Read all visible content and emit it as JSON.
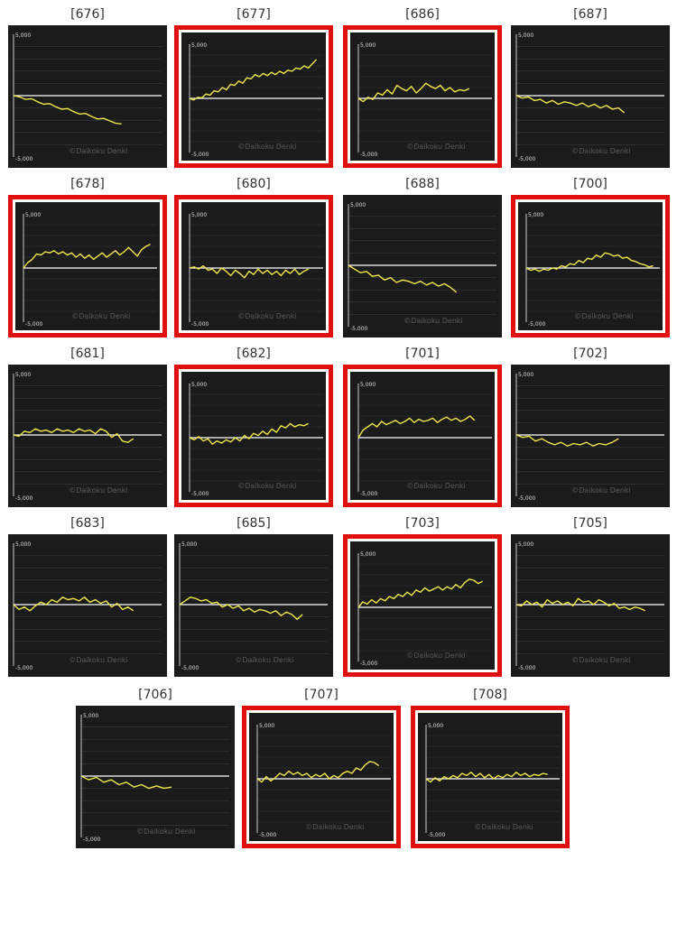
{
  "chart_data": [
    {
      "type": "line",
      "title": "[676]",
      "highlighted": false,
      "watermark": "©Daikoku Denki",
      "yticks": [
        "5,000",
        "-5,000"
      ],
      "ylim": [
        -5000,
        5000
      ],
      "values": [
        0,
        -100,
        -300,
        -250,
        -500,
        -700,
        -650,
        -900,
        -1100,
        -1050,
        -1300,
        -1500,
        -1450,
        -1700,
        -1900,
        -1850,
        -2050,
        -2250,
        -2300
      ]
    },
    {
      "type": "line",
      "title": "[677]",
      "highlighted": true,
      "watermark": "©Daikoku Denki",
      "yticks": [
        "5,000",
        "-5,000"
      ],
      "ylim": [
        -5000,
        5000
      ],
      "values": [
        0,
        -150,
        100,
        50,
        400,
        300,
        700,
        600,
        1000,
        800,
        1300,
        1200,
        1600,
        1400,
        1900,
        1800,
        2200,
        2000,
        2300,
        2100,
        2400,
        2200,
        2500,
        2300,
        2600,
        2500,
        2800,
        2700,
        3000,
        2800,
        3200,
        3600
      ]
    },
    {
      "type": "line",
      "title": "[686]",
      "highlighted": true,
      "watermark": "©Daikoku Denki",
      "yticks": [
        "5,000",
        "-5,000"
      ],
      "ylim": [
        -5000,
        5000
      ],
      "values": [
        0,
        -300,
        100,
        -100,
        500,
        300,
        800,
        400,
        1200,
        900,
        700,
        1100,
        500,
        900,
        1400,
        1100,
        900,
        1200,
        700,
        1000,
        600,
        800,
        700,
        900
      ]
    },
    {
      "type": "line",
      "title": "[687]",
      "highlighted": false,
      "watermark": "©Daikoku Denki",
      "yticks": [
        "5,000",
        "-5,000"
      ],
      "ylim": [
        -5000,
        5000
      ],
      "values": [
        0,
        -200,
        -100,
        -400,
        -300,
        -600,
        -400,
        -700,
        -500,
        -600,
        -800,
        -600,
        -900,
        -700,
        -1000,
        -800,
        -1100,
        -1000,
        -1400
      ]
    },
    {
      "type": "line",
      "title": "[678]",
      "highlighted": true,
      "watermark": "©Daikoku Denki",
      "yticks": [
        "5,000",
        "-5,000"
      ],
      "ylim": [
        -5000,
        5000
      ],
      "values": [
        0,
        500,
        800,
        1300,
        1200,
        1500,
        1400,
        1600,
        1300,
        1500,
        1200,
        1400,
        1000,
        1300,
        900,
        1200,
        800,
        1100,
        1400,
        1000,
        1300,
        1600,
        1200,
        1500,
        1900,
        1500,
        1100,
        1700,
        2000,
        2200
      ]
    },
    {
      "type": "line",
      "title": "[680]",
      "highlighted": true,
      "watermark": "©Daikoku Denki",
      "yticks": [
        "5,000",
        "-5,000"
      ],
      "ylim": [
        -5000,
        5000
      ],
      "values": [
        0,
        100,
        -100,
        200,
        -200,
        -100,
        -500,
        0,
        -300,
        -700,
        -200,
        -500,
        -900,
        -300,
        -600,
        -100,
        -500,
        -200,
        -600,
        -300,
        -700,
        -200,
        -500,
        -100,
        -600,
        -300,
        -100
      ]
    },
    {
      "type": "line",
      "title": "[688]",
      "highlighted": false,
      "watermark": "©Daikoku Denki",
      "yticks": [
        "5,000",
        "-5,000"
      ],
      "ylim": [
        -5000,
        5000
      ],
      "values": [
        0,
        -300,
        -600,
        -500,
        -900,
        -800,
        -1200,
        -1000,
        -1400,
        -1200,
        -1300,
        -1500,
        -1300,
        -1600,
        -1400,
        -1700,
        -1500,
        -1800,
        -2200
      ]
    },
    {
      "type": "line",
      "title": "[700]",
      "highlighted": true,
      "watermark": "©Daikoku Denki",
      "yticks": [
        "5,000",
        "-5,000"
      ],
      "ylim": [
        -5000,
        5000
      ],
      "values": [
        0,
        -200,
        -100,
        -300,
        -100,
        -200,
        0,
        -100,
        200,
        100,
        400,
        300,
        700,
        500,
        900,
        800,
        1200,
        1000,
        1400,
        1300,
        1100,
        1200,
        900,
        1000,
        700,
        600,
        400,
        300,
        100,
        200
      ]
    },
    {
      "type": "line",
      "title": "[681]",
      "highlighted": false,
      "watermark": "©Daikoku Denki",
      "yticks": [
        "5,000",
        "-5,000"
      ],
      "ylim": [
        -5000,
        5000
      ],
      "values": [
        0,
        -100,
        300,
        200,
        500,
        300,
        400,
        200,
        500,
        300,
        400,
        200,
        500,
        300,
        400,
        100,
        500,
        300,
        -200,
        100,
        -500,
        -600,
        -300
      ]
    },
    {
      "type": "line",
      "title": "[682]",
      "highlighted": true,
      "watermark": "©Daikoku Denki",
      "yticks": [
        "5,000",
        "-5,000"
      ],
      "ylim": [
        -5000,
        5000
      ],
      "values": [
        0,
        -200,
        100,
        -300,
        -100,
        -600,
        -300,
        -500,
        -200,
        -400,
        0,
        -300,
        200,
        -100,
        400,
        200,
        600,
        300,
        800,
        500,
        1100,
        900,
        1300,
        1000,
        1200,
        1100,
        1300
      ]
    },
    {
      "type": "line",
      "title": "[701]",
      "highlighted": true,
      "watermark": "©Daikoku Denki",
      "yticks": [
        "5,000",
        "-5,000"
      ],
      "ylim": [
        -5000,
        5000
      ],
      "values": [
        0,
        700,
        1000,
        1300,
        1000,
        1500,
        1200,
        1400,
        1600,
        1300,
        1500,
        1800,
        1400,
        1700,
        1500,
        1600,
        1800,
        1400,
        1700,
        1900,
        1600,
        1800,
        1500,
        1700,
        2000,
        1600
      ]
    },
    {
      "type": "line",
      "title": "[702]",
      "highlighted": false,
      "watermark": "©Daikoku Denki",
      "yticks": [
        "5,000",
        "-5,000"
      ],
      "ylim": [
        -5000,
        5000
      ],
      "values": [
        0,
        -200,
        -100,
        -500,
        -300,
        -600,
        -800,
        -600,
        -900,
        -700,
        -800,
        -600,
        -900,
        -700,
        -800,
        -600,
        -300
      ]
    },
    {
      "type": "line",
      "title": "[683]",
      "highlighted": false,
      "watermark": "©Daikoku Denki",
      "yticks": [
        "5,000",
        "-5,000"
      ],
      "ylim": [
        -5000,
        5000
      ],
      "values": [
        0,
        -400,
        -200,
        -500,
        -100,
        200,
        0,
        400,
        200,
        600,
        400,
        500,
        300,
        600,
        200,
        400,
        100,
        300,
        -200,
        100,
        -400,
        -200,
        -500
      ]
    },
    {
      "type": "line",
      "title": "[685]",
      "highlighted": false,
      "watermark": "©Daikoku Denki",
      "yticks": [
        "5,000",
        "-5,000"
      ],
      "ylim": [
        -5000,
        5000
      ],
      "values": [
        0,
        300,
        600,
        500,
        300,
        400,
        100,
        200,
        -200,
        0,
        -300,
        -100,
        -500,
        -300,
        -600,
        -400,
        -500,
        -700,
        -500,
        -900,
        -600,
        -800,
        -1200,
        -800
      ]
    },
    {
      "type": "line",
      "title": "[703]",
      "highlighted": true,
      "watermark": "©Daikoku Denki",
      "yticks": [
        "5,000",
        "-5,000"
      ],
      "ylim": [
        -5000,
        5000
      ],
      "values": [
        0,
        500,
        300,
        700,
        400,
        800,
        600,
        1000,
        800,
        1200,
        1000,
        1400,
        1100,
        1600,
        1400,
        1800,
        1500,
        1700,
        1900,
        1600,
        1900,
        1700,
        2100,
        1800,
        2300,
        2600,
        2500,
        2200,
        2400
      ]
    },
    {
      "type": "line",
      "title": "[705]",
      "highlighted": false,
      "watermark": "©Daikoku Denki",
      "yticks": [
        "5,000",
        "-5,000"
      ],
      "ylim": [
        -5000,
        5000
      ],
      "values": [
        0,
        -100,
        300,
        0,
        200,
        -200,
        400,
        100,
        300,
        0,
        200,
        -100,
        500,
        200,
        300,
        0,
        400,
        200,
        -100,
        100,
        -300,
        -200,
        -400,
        -200,
        -300,
        -500
      ]
    },
    {
      "type": "line",
      "title": "[706]",
      "highlighted": false,
      "watermark": "©Daikoku Denki",
      "yticks": [
        "5,000",
        "-5,000"
      ],
      "ylim": [
        -5000,
        5000
      ],
      "values": [
        0,
        -300,
        -100,
        -500,
        -300,
        -700,
        -500,
        -900,
        -700,
        -1000,
        -800,
        -1000,
        -900
      ]
    },
    {
      "type": "line",
      "title": "[707]",
      "highlighted": true,
      "watermark": "©Daikoku Denki",
      "yticks": [
        "5,000",
        "-5,000"
      ],
      "ylim": [
        -5000,
        5000
      ],
      "values": [
        0,
        -300,
        200,
        -200,
        100,
        500,
        300,
        700,
        400,
        600,
        300,
        500,
        100,
        400,
        200,
        500,
        0,
        300,
        100,
        500,
        700,
        500,
        1000,
        800,
        1300,
        1600,
        1500,
        1200
      ]
    },
    {
      "type": "line",
      "title": "[708]",
      "highlighted": true,
      "watermark": "©Daikoku Denki",
      "yticks": [
        "5,000",
        "-5,000"
      ],
      "ylim": [
        -5000,
        5000
      ],
      "values": [
        0,
        -300,
        100,
        -200,
        200,
        0,
        300,
        100,
        500,
        300,
        600,
        200,
        500,
        100,
        400,
        0,
        300,
        100,
        400,
        200,
        600,
        300,
        500,
        200,
        400,
        300,
        500,
        400
      ]
    }
  ],
  "colors": {
    "highlight": "#e01010",
    "panel": "#1b1b1b",
    "line": "#f2e64a",
    "zero_line": "#ffffff",
    "grid": "#3a3a3a"
  }
}
